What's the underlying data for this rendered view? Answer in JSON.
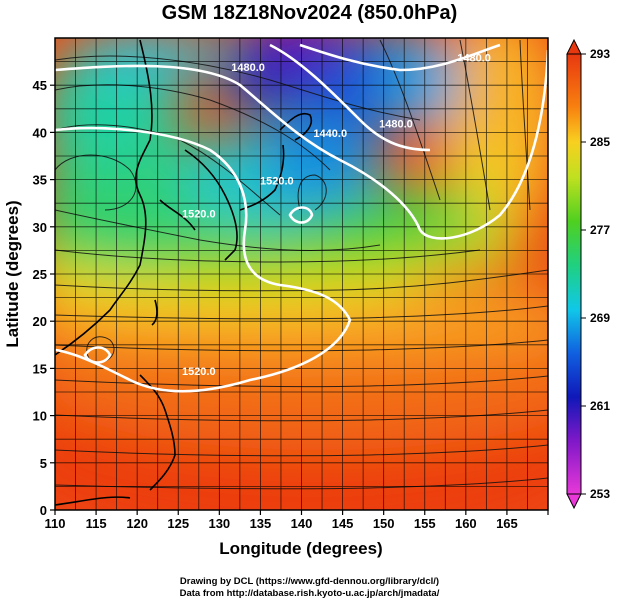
{
  "title": "GSM 18Z18Nov2024 (850.0hPa)",
  "chart_data": {
    "type": "heatmap",
    "title": "GSM 18Z18Nov2024 (850.0hPa)",
    "xlabel": "Longitude (degrees)",
    "ylabel": "Latitude (degrees)",
    "xlim": [
      110,
      170
    ],
    "ylim": [
      0,
      50
    ],
    "x_ticks": [
      "110",
      "115",
      "120",
      "125",
      "130",
      "135",
      "140",
      "145",
      "150",
      "155",
      "160",
      "165"
    ],
    "y_ticks": [
      "0",
      "5",
      "10",
      "15",
      "20",
      "25",
      "30",
      "35",
      "40",
      "45"
    ],
    "grid": true,
    "colorbar": {
      "min": 253,
      "max": 293,
      "tick_labels": [
        "293",
        "285",
        "277",
        "269",
        "261",
        "253"
      ],
      "placement": "right"
    },
    "contour_labels": [
      {
        "text": "1480.0",
        "lon": 133.5,
        "lat": 46.5
      },
      {
        "text": "1480.0",
        "lon": 161.0,
        "lat": 47.5
      },
      {
        "text": "1480.0",
        "lon": 151.5,
        "lat": 40.5
      },
      {
        "text": "1440.0",
        "lon": 143.5,
        "lat": 39.5
      },
      {
        "text": "1520.0",
        "lon": 137.0,
        "lat": 34.5
      },
      {
        "text": "1520.0",
        "lon": 127.5,
        "lat": 31.0
      },
      {
        "text": "1520.0",
        "lon": 127.5,
        "lat": 14.3
      }
    ],
    "features": [
      "temperature shading",
      "geopotential height contours",
      "wind streamlines",
      "coastlines"
    ]
  },
  "colors": {
    "magenta": "#e040d0",
    "blue": "#1020c0",
    "cyan": "#20d0e0",
    "green": "#60d020",
    "yellow": "#f0e020",
    "orange": "#f08010",
    "red": "#e03010"
  },
  "credits": {
    "line1": "Drawing by DCL (https://www.gfd-dennou.org/library/dcl/)",
    "line2": "Data from http://database.rish.kyoto-u.ac.jp/arch/jmadata/"
  }
}
